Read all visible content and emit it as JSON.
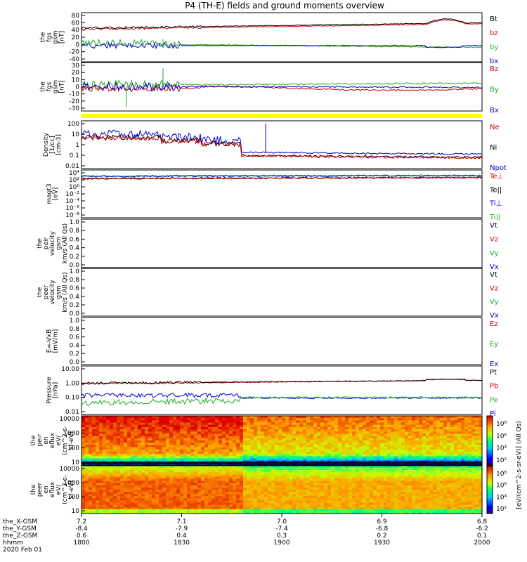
{
  "title": "P4 (TH-E) fields and ground moments overview",
  "panels": [
    {
      "id": "fgs_gsm",
      "ylabel": [
        "the",
        "fgs",
        "gsm",
        "[nT]"
      ],
      "ticks": [
        "80",
        "60",
        "40",
        "20",
        "0",
        "-20",
        "-40"
      ],
      "legend": [
        {
          "label": "Bt",
          "color": "#000000"
        },
        {
          "label": "bz",
          "color": "#cc0000"
        },
        {
          "label": "by",
          "color": "#22aa22"
        },
        {
          "label": "bx",
          "color": "#0000cc"
        }
      ]
    },
    {
      "id": "fgs_dsl",
      "ylabel": [
        "the",
        "fgs",
        "gsm",
        "[nT]"
      ],
      "ticks": [
        "30",
        "20",
        "10",
        "0",
        "-10",
        "-20",
        "-30"
      ],
      "legend": [
        {
          "label": "Bz",
          "color": "#cc0000"
        },
        {
          "label": "By",
          "color": "#22aa22"
        },
        {
          "label": "Bx",
          "color": "#0000cc"
        }
      ]
    },
    {
      "id": "density",
      "ylabel": [
        "Density",
        "[1/cc]",
        "[cm-3]"
      ],
      "ticks": [
        "100",
        "10",
        "1",
        "0.1",
        "0.01"
      ],
      "legend": [
        {
          "label": "Ne",
          "color": "#cc0000"
        },
        {
          "label": "Ni",
          "color": "#000000"
        },
        {
          "label": "Npot",
          "color": "#0000cc"
        }
      ]
    },
    {
      "id": "temp",
      "ylabel": [
        "magt3",
        "[eV]"
      ],
      "ticks": [
        "10⁴",
        "10²",
        "10⁰",
        "10⁻²",
        "10⁻⁴",
        "10⁻⁶",
        "10⁻⁸"
      ],
      "legend": [
        {
          "label": "Te⊥",
          "color": "#cc0000"
        },
        {
          "label": "Te||",
          "color": "#000000"
        },
        {
          "label": "Ti⊥",
          "color": "#0000cc"
        },
        {
          "label": "Ti||",
          "color": "#22aa22"
        }
      ]
    },
    {
      "id": "peir_vel",
      "ylabel": [
        "the",
        "peir",
        "velocity",
        "gsm",
        "km/s (All Qs)"
      ],
      "ticks": [
        "1.0",
        "0.8",
        "0.6",
        "0.4",
        "0.2",
        "0.0"
      ],
      "legend": [
        {
          "label": "Vt",
          "color": "#000000"
        },
        {
          "label": "Vz",
          "color": "#cc0000"
        },
        {
          "label": "Vy",
          "color": "#22aa22"
        },
        {
          "label": "Vx",
          "color": "#0000cc"
        }
      ]
    },
    {
      "id": "peer_vel",
      "ylabel": [
        "the",
        "peer",
        "velocity",
        "gsm",
        "km/s (All Qs)"
      ],
      "ticks": [
        "1.0",
        "0.8",
        "0.6",
        "0.4",
        "0.2",
        "0.0"
      ],
      "legend": [
        {
          "label": "Vt",
          "color": "#000000"
        },
        {
          "label": "Vz",
          "color": "#cc0000"
        },
        {
          "label": "Vy",
          "color": "#22aa22"
        },
        {
          "label": "Vx",
          "color": "#0000cc"
        }
      ]
    },
    {
      "id": "efield",
      "ylabel": [
        "E=-VxB",
        "[mV/m]"
      ],
      "ticks": [
        "1.0",
        "0.8",
        "0.6",
        "0.4",
        "0.2",
        "0.0"
      ],
      "legend": [
        {
          "label": "Ez",
          "color": "#cc0000"
        },
        {
          "label": "Ey",
          "color": "#22aa22"
        },
        {
          "label": "Ex",
          "color": "#0000cc"
        }
      ]
    },
    {
      "id": "pressure",
      "ylabel": [
        "Pressure",
        "[nPa]"
      ],
      "ticks": [
        "10.00",
        "1.00",
        "0.10",
        "0.01"
      ],
      "legend": [
        {
          "label": "Pt",
          "color": "#000000"
        },
        {
          "label": "Pb",
          "color": "#cc0000"
        },
        {
          "label": "Pe",
          "color": "#22aa22"
        },
        {
          "label": "Pi",
          "color": "#0000cc"
        }
      ]
    },
    {
      "id": "peir_spec",
      "ylabel": [
        "the",
        "peir",
        "en",
        "eflux",
        "eV/",
        "(cm^2-s-",
        "sr-eV)"
      ],
      "ticks": [
        "10000",
        "1000",
        "100",
        "10"
      ]
    },
    {
      "id": "peer_spec",
      "ylabel": [
        "the",
        "peer",
        "en",
        "eflux",
        "eV/",
        "(cm^2-s-",
        "sr-eV)"
      ],
      "ticks": [
        "10000",
        "1000",
        "100",
        "10"
      ]
    }
  ],
  "colorbar": {
    "label": "[eV/(cm^2-s-sr-eV)] (All Qs)",
    "ticks_top": [
      "10⁸",
      "10⁶",
      "10⁴",
      "10²"
    ],
    "ticks_bottom": [
      "10⁸",
      "10⁶",
      "10⁴",
      "10²"
    ]
  },
  "xaxis": {
    "rows": [
      {
        "label": "the_X-GSM",
        "values": [
          "7.2",
          "7.1",
          "7.0",
          "6.9",
          "6.8"
        ]
      },
      {
        "label": "the_Y-GSM",
        "values": [
          "-8.4",
          "-7.9",
          "-7.4",
          "-6.8",
          "-6.2"
        ]
      },
      {
        "label": "the_Z-GSM",
        "values": [
          "0.6",
          "0.4",
          "0.3",
          "0.2",
          "0.1"
        ]
      },
      {
        "label": "hhmm",
        "values": [
          "1800",
          "1830",
          "1900",
          "1930",
          "2000"
        ]
      }
    ],
    "date": "2020 Feb 01"
  },
  "chart_data": {
    "type": "line",
    "title": "P4 (TH-E) fields and ground moments overview",
    "x_time_hhmm": [
      "1800",
      "1830",
      "1900",
      "1930",
      "2000"
    ],
    "series": [
      {
        "panel": "fgs_gsm",
        "name": "Bt",
        "x": [
          "1800",
          "1815",
          "1830",
          "1900",
          "1930",
          "1945",
          "2000"
        ],
        "values": [
          45,
          40,
          42,
          48,
          55,
          65,
          58
        ]
      },
      {
        "panel": "fgs_gsm",
        "name": "bz",
        "x": [
          "1800",
          "1815",
          "1830",
          "1900",
          "1930",
          "1945",
          "2000"
        ],
        "values": [
          43,
          38,
          40,
          46,
          53,
          63,
          56
        ]
      },
      {
        "panel": "fgs_gsm",
        "name": "by",
        "x": [
          "1800",
          "1815",
          "1830",
          "1900",
          "1930",
          "1945",
          "2000"
        ],
        "values": [
          5,
          -5,
          0,
          -2,
          -5,
          -8,
          -10
        ]
      },
      {
        "panel": "fgs_gsm",
        "name": "bx",
        "x": [
          "1800",
          "1815",
          "1830",
          "1900",
          "1930",
          "1945",
          "2000"
        ],
        "values": [
          -2,
          -8,
          -3,
          -2,
          0,
          -8,
          -2
        ]
      },
      {
        "panel": "density",
        "name": "Ne",
        "x": [
          "1800",
          "1815",
          "1830",
          "1845",
          "1900",
          "1930",
          "2000"
        ],
        "values": [
          5,
          4,
          1,
          0.5,
          0.1,
          0.08,
          0.06
        ]
      },
      {
        "panel": "density",
        "name": "Npot",
        "x": [
          "1800",
          "1815",
          "1830",
          "1845",
          "1900",
          "1930",
          "2000"
        ],
        "values": [
          10,
          8,
          2,
          1,
          0.3,
          0.25,
          0.2
        ]
      },
      {
        "panel": "pressure",
        "name": "Pt",
        "x": [
          "1800",
          "1830",
          "1900",
          "1930",
          "2000"
        ],
        "values": [
          1.0,
          0.9,
          1.0,
          1.2,
          1.6
        ]
      },
      {
        "panel": "pressure",
        "name": "Pb",
        "x": [
          "1800",
          "1830",
          "1900",
          "1930",
          "2000"
        ],
        "values": [
          0.9,
          0.8,
          0.95,
          1.15,
          1.55
        ]
      },
      {
        "panel": "pressure",
        "name": "Pe",
        "x": [
          "1800",
          "1830",
          "1900",
          "1930",
          "2000"
        ],
        "values": [
          0.04,
          0.05,
          0.09,
          0.1,
          0.1
        ]
      },
      {
        "panel": "pressure",
        "name": "Pi",
        "x": [
          "1800",
          "1830",
          "1900",
          "1930",
          "2000"
        ],
        "values": [
          0.15,
          0.12,
          0.1,
          0.1,
          0.09
        ]
      }
    ]
  }
}
